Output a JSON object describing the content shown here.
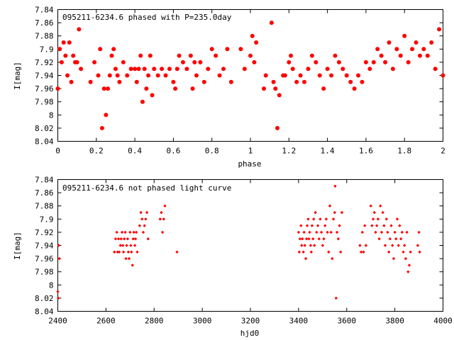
{
  "chart_data": [
    {
      "type": "scatter",
      "title": "095211-6234.6 phased with P=235.0day",
      "xlabel": "phase",
      "ylabel": "I[mag]",
      "xlim": [
        0,
        2
      ],
      "ylim": [
        7.84,
        8.04
      ],
      "y_inverted": true,
      "grid": false,
      "marker_color": "#ff0000",
      "marker": "filled-circle-large",
      "x_ticks": [
        "0",
        "0.2",
        "0.4",
        "0.6",
        "0.8",
        "1",
        "1.2",
        "1.4",
        "1.6",
        "1.8",
        "2"
      ],
      "y_ticks": [
        "7.84",
        "7.86",
        "7.88",
        "7.9",
        "7.92",
        "7.94",
        "7.96",
        "7.98",
        "8",
        "8.02",
        "8.04"
      ],
      "points": [
        [
          0.0,
          7.96
        ],
        [
          0.01,
          7.9
        ],
        [
          0.02,
          7.92
        ],
        [
          0.03,
          7.89
        ],
        [
          0.04,
          7.91
        ],
        [
          0.05,
          7.94
        ],
        [
          0.06,
          7.89
        ],
        [
          0.07,
          7.95
        ],
        [
          0.08,
          7.91
        ],
        [
          0.09,
          7.92
        ],
        [
          0.1,
          7.92
        ],
        [
          0.11,
          7.87
        ],
        [
          0.12,
          7.93
        ],
        [
          0.17,
          7.95
        ],
        [
          0.19,
          7.92
        ],
        [
          0.21,
          7.94
        ],
        [
          0.22,
          7.9
        ],
        [
          0.23,
          8.02
        ],
        [
          0.24,
          7.96
        ],
        [
          0.25,
          8.0
        ],
        [
          0.26,
          7.96
        ],
        [
          0.27,
          7.94
        ],
        [
          0.28,
          7.91
        ],
        [
          0.29,
          7.9
        ],
        [
          0.3,
          7.93
        ],
        [
          0.31,
          7.94
        ],
        [
          0.32,
          7.95
        ],
        [
          0.34,
          7.92
        ],
        [
          0.36,
          7.94
        ],
        [
          0.38,
          7.93
        ],
        [
          0.4,
          7.93
        ],
        [
          0.41,
          7.95
        ],
        [
          0.42,
          7.93
        ],
        [
          0.43,
          7.91
        ],
        [
          0.44,
          7.98
        ],
        [
          0.45,
          7.93
        ],
        [
          0.46,
          7.96
        ],
        [
          0.47,
          7.94
        ],
        [
          0.48,
          7.91
        ],
        [
          0.49,
          7.97
        ],
        [
          0.5,
          7.93
        ],
        [
          0.52,
          7.94
        ],
        [
          0.54,
          7.93
        ],
        [
          0.56,
          7.94
        ],
        [
          0.58,
          7.93
        ],
        [
          0.6,
          7.95
        ],
        [
          0.61,
          7.96
        ],
        [
          0.62,
          7.93
        ],
        [
          0.63,
          7.91
        ],
        [
          0.65,
          7.92
        ],
        [
          0.67,
          7.93
        ],
        [
          0.69,
          7.91
        ],
        [
          0.7,
          7.96
        ],
        [
          0.71,
          7.92
        ],
        [
          0.72,
          7.94
        ],
        [
          0.74,
          7.92
        ],
        [
          0.76,
          7.95
        ],
        [
          0.78,
          7.93
        ],
        [
          0.8,
          7.9
        ],
        [
          0.82,
          7.91
        ],
        [
          0.84,
          7.94
        ],
        [
          0.86,
          7.93
        ],
        [
          0.88,
          7.9
        ],
        [
          0.9,
          7.95
        ],
        [
          0.95,
          7.9
        ],
        [
          0.97,
          7.93
        ],
        [
          1.0,
          7.91
        ],
        [
          1.02,
          7.92
        ],
        [
          1.01,
          7.88
        ],
        [
          1.03,
          7.89
        ],
        [
          1.07,
          7.96
        ],
        [
          1.08,
          7.94
        ],
        [
          1.11,
          7.86
        ],
        [
          1.12,
          7.95
        ],
        [
          1.13,
          7.96
        ],
        [
          1.14,
          8.02
        ],
        [
          1.15,
          7.97
        ],
        [
          1.17,
          7.94
        ],
        [
          1.18,
          7.94
        ],
        [
          1.2,
          7.92
        ],
        [
          1.21,
          7.91
        ],
        [
          1.22,
          7.93
        ],
        [
          1.24,
          7.95
        ],
        [
          1.26,
          7.94
        ],
        [
          1.28,
          7.95
        ],
        [
          1.3,
          7.93
        ],
        [
          1.32,
          7.91
        ],
        [
          1.34,
          7.92
        ],
        [
          1.36,
          7.94
        ],
        [
          1.38,
          7.96
        ],
        [
          1.4,
          7.93
        ],
        [
          1.42,
          7.94
        ],
        [
          1.44,
          7.91
        ],
        [
          1.46,
          7.92
        ],
        [
          1.48,
          7.93
        ],
        [
          1.5,
          7.94
        ],
        [
          1.52,
          7.95
        ],
        [
          1.54,
          7.96
        ],
        [
          1.56,
          7.94
        ],
        [
          1.58,
          7.95
        ],
        [
          1.6,
          7.92
        ],
        [
          1.62,
          7.93
        ],
        [
          1.64,
          7.92
        ],
        [
          1.66,
          7.9
        ],
        [
          1.68,
          7.91
        ],
        [
          1.7,
          7.92
        ],
        [
          1.72,
          7.89
        ],
        [
          1.74,
          7.93
        ],
        [
          1.76,
          7.9
        ],
        [
          1.78,
          7.91
        ],
        [
          1.8,
          7.88
        ],
        [
          1.82,
          7.92
        ],
        [
          1.84,
          7.9
        ],
        [
          1.86,
          7.89
        ],
        [
          1.88,
          7.91
        ],
        [
          1.9,
          7.9
        ],
        [
          1.92,
          7.91
        ],
        [
          1.94,
          7.89
        ],
        [
          1.96,
          7.93
        ],
        [
          1.98,
          7.87
        ],
        [
          2.0,
          7.94
        ]
      ]
    },
    {
      "type": "scatter",
      "title": "095211-6234.6 not phased light curve",
      "xlabel": "hjd0",
      "ylabel": "I[mag]",
      "xlim": [
        2400,
        4000
      ],
      "ylim": [
        7.84,
        8.04
      ],
      "y_inverted": true,
      "grid": false,
      "marker_color": "#ff0000",
      "marker": "diamond-small",
      "x_ticks": [
        "2400",
        "2600",
        "2800",
        "3000",
        "3200",
        "3400",
        "3600",
        "3800",
        "4000"
      ],
      "y_ticks": [
        "7.84",
        "7.86",
        "7.88",
        "7.9",
        "7.92",
        "7.94",
        "7.96",
        "7.98",
        "8",
        "8.02",
        "8.04"
      ],
      "points": [
        [
          2400,
          8.01
        ],
        [
          2402,
          8.02
        ],
        [
          2404,
          7.94
        ],
        [
          2406,
          7.96
        ],
        [
          2635,
          7.95
        ],
        [
          2640,
          7.93
        ],
        [
          2645,
          7.92
        ],
        [
          2648,
          7.95
        ],
        [
          2652,
          7.93
        ],
        [
          2655,
          7.95
        ],
        [
          2660,
          7.94
        ],
        [
          2663,
          7.93
        ],
        [
          2667,
          7.92
        ],
        [
          2670,
          7.94
        ],
        [
          2673,
          7.95
        ],
        [
          2676,
          7.93
        ],
        [
          2680,
          7.92
        ],
        [
          2683,
          7.96
        ],
        [
          2686,
          7.94
        ],
        [
          2690,
          7.93
        ],
        [
          2693,
          7.95
        ],
        [
          2696,
          7.96
        ],
        [
          2700,
          7.92
        ],
        [
          2703,
          7.94
        ],
        [
          2706,
          7.95
        ],
        [
          2710,
          7.97
        ],
        [
          2713,
          7.93
        ],
        [
          2716,
          7.92
        ],
        [
          2720,
          7.94
        ],
        [
          2723,
          7.93
        ],
        [
          2726,
          7.92
        ],
        [
          2730,
          7.95
        ],
        [
          2740,
          7.91
        ],
        [
          2745,
          7.89
        ],
        [
          2750,
          7.9
        ],
        [
          2755,
          7.92
        ],
        [
          2760,
          7.91
        ],
        [
          2765,
          7.9
        ],
        [
          2770,
          7.89
        ],
        [
          2775,
          7.93
        ],
        [
          2825,
          7.9
        ],
        [
          2830,
          7.89
        ],
        [
          2835,
          7.92
        ],
        [
          2840,
          7.9
        ],
        [
          2845,
          7.88
        ],
        [
          2895,
          7.95
        ],
        [
          3400,
          7.92
        ],
        [
          3403,
          7.95
        ],
        [
          3406,
          7.93
        ],
        [
          3410,
          7.91
        ],
        [
          3413,
          7.94
        ],
        [
          3416,
          7.93
        ],
        [
          3420,
          7.95
        ],
        [
          3423,
          7.92
        ],
        [
          3426,
          7.94
        ],
        [
          3430,
          7.96
        ],
        [
          3433,
          7.93
        ],
        [
          3436,
          7.91
        ],
        [
          3440,
          7.9
        ],
        [
          3443,
          7.93
        ],
        [
          3446,
          7.92
        ],
        [
          3450,
          7.94
        ],
        [
          3453,
          7.95
        ],
        [
          3456,
          7.91
        ],
        [
          3460,
          7.93
        ],
        [
          3463,
          7.9
        ],
        [
          3466,
          7.94
        ],
        [
          3470,
          7.89
        ],
        [
          3475,
          7.92
        ],
        [
          3480,
          7.91
        ],
        [
          3485,
          7.93
        ],
        [
          3490,
          7.9
        ],
        [
          3495,
          7.92
        ],
        [
          3500,
          7.94
        ],
        [
          3505,
          7.93
        ],
        [
          3510,
          7.91
        ],
        [
          3515,
          7.9
        ],
        [
          3520,
          7.92
        ],
        [
          3525,
          7.95
        ],
        [
          3530,
          7.88
        ],
        [
          3535,
          7.92
        ],
        [
          3540,
          7.96
        ],
        [
          3545,
          7.9
        ],
        [
          3550,
          7.89
        ],
        [
          3552,
          7.85
        ],
        [
          3556,
          8.02
        ],
        [
          3560,
          7.92
        ],
        [
          3565,
          7.93
        ],
        [
          3570,
          7.91
        ],
        [
          3575,
          7.95
        ],
        [
          3580,
          7.89
        ],
        [
          3655,
          7.94
        ],
        [
          3660,
          7.95
        ],
        [
          3665,
          7.92
        ],
        [
          3670,
          7.95
        ],
        [
          3675,
          7.91
        ],
        [
          3680,
          7.94
        ],
        [
          3700,
          7.88
        ],
        [
          3705,
          7.91
        ],
        [
          3710,
          7.9
        ],
        [
          3715,
          7.89
        ],
        [
          3720,
          7.92
        ],
        [
          3725,
          7.91
        ],
        [
          3730,
          7.9
        ],
        [
          3735,
          7.93
        ],
        [
          3740,
          7.88
        ],
        [
          3745,
          7.92
        ],
        [
          3750,
          7.89
        ],
        [
          3755,
          7.91
        ],
        [
          3760,
          7.94
        ],
        [
          3765,
          7.9
        ],
        [
          3770,
          7.92
        ],
        [
          3775,
          7.95
        ],
        [
          3780,
          7.93
        ],
        [
          3785,
          7.91
        ],
        [
          3790,
          7.94
        ],
        [
          3795,
          7.96
        ],
        [
          3800,
          7.92
        ],
        [
          3805,
          7.93
        ],
        [
          3810,
          7.9
        ],
        [
          3815,
          7.94
        ],
        [
          3820,
          7.91
        ],
        [
          3825,
          7.93
        ],
        [
          3830,
          7.92
        ],
        [
          3835,
          7.95
        ],
        [
          3840,
          7.94
        ],
        [
          3845,
          7.96
        ],
        [
          3850,
          7.92
        ],
        [
          3855,
          7.98
        ],
        [
          3860,
          7.97
        ],
        [
          3865,
          7.95
        ],
        [
          3895,
          7.94
        ],
        [
          3900,
          7.92
        ],
        [
          3903,
          7.95
        ]
      ]
    }
  ]
}
